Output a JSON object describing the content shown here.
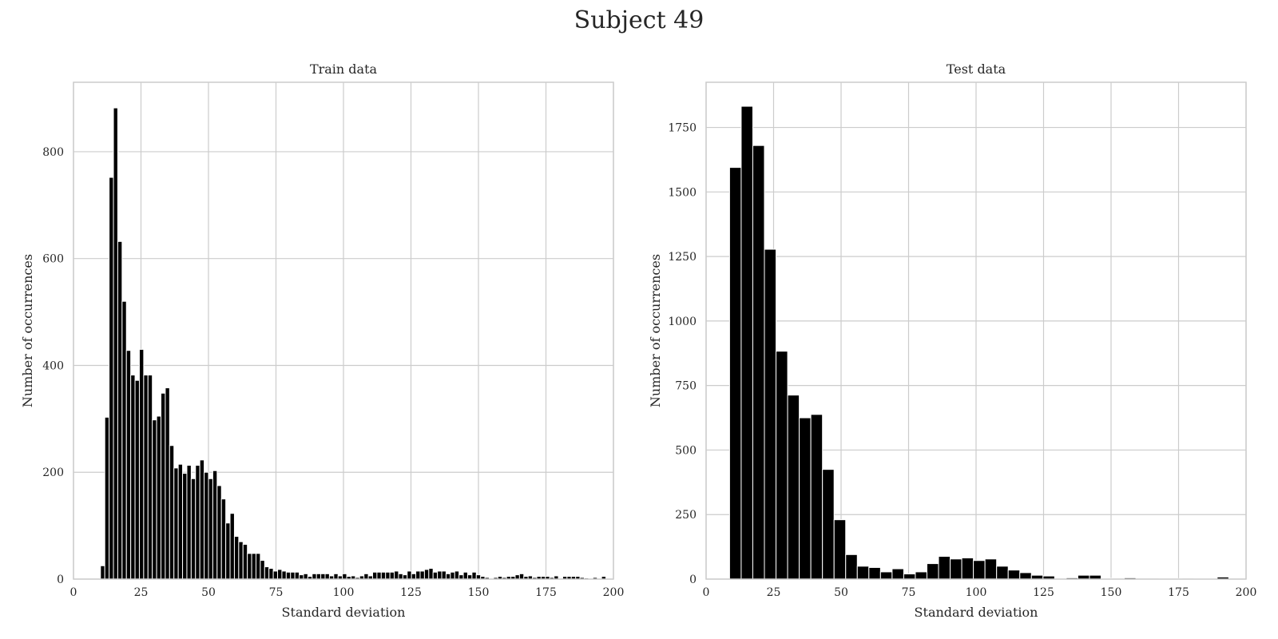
{
  "figure": {
    "title": "Subject 49"
  },
  "chart_data": [
    {
      "type": "bar",
      "title": "Train data",
      "xlabel": "Standard deviation",
      "ylabel": "Number of occurrences",
      "xlim": [
        0,
        200
      ],
      "ylim": [
        0,
        930
      ],
      "xticks": [
        0,
        25,
        50,
        75,
        100,
        125,
        150,
        175,
        200
      ],
      "yticks": [
        0,
        200,
        400,
        600,
        800
      ],
      "grid": true,
      "bin_width": 1.6,
      "bins": [
        [
          10.0,
          25
        ],
        [
          11.6,
          303
        ],
        [
          13.2,
          752
        ],
        [
          14.8,
          882
        ],
        [
          16.4,
          632
        ],
        [
          18.0,
          520
        ],
        [
          19.6,
          428
        ],
        [
          21.2,
          382
        ],
        [
          22.8,
          372
        ],
        [
          24.4,
          430
        ],
        [
          26.0,
          382
        ],
        [
          27.6,
          382
        ],
        [
          29.2,
          298
        ],
        [
          30.8,
          305
        ],
        [
          32.4,
          348
        ],
        [
          34.0,
          358
        ],
        [
          35.6,
          250
        ],
        [
          37.2,
          208
        ],
        [
          38.8,
          215
        ],
        [
          40.4,
          198
        ],
        [
          42.0,
          213
        ],
        [
          43.6,
          188
        ],
        [
          45.2,
          213
        ],
        [
          46.8,
          223
        ],
        [
          48.4,
          200
        ],
        [
          50.0,
          188
        ],
        [
          51.6,
          203
        ],
        [
          53.2,
          175
        ],
        [
          54.8,
          150
        ],
        [
          56.4,
          105
        ],
        [
          58.0,
          123
        ],
        [
          59.6,
          80
        ],
        [
          61.2,
          70
        ],
        [
          62.8,
          65
        ],
        [
          64.4,
          48
        ],
        [
          66.0,
          48
        ],
        [
          67.6,
          48
        ],
        [
          69.2,
          35
        ],
        [
          70.8,
          23
        ],
        [
          72.4,
          20
        ],
        [
          74.0,
          15
        ],
        [
          75.6,
          18
        ],
        [
          77.2,
          15
        ],
        [
          78.8,
          13
        ],
        [
          80.4,
          13
        ],
        [
          82.0,
          13
        ],
        [
          83.6,
          8
        ],
        [
          85.2,
          10
        ],
        [
          86.8,
          5
        ],
        [
          88.4,
          10
        ],
        [
          90.0,
          10
        ],
        [
          91.6,
          10
        ],
        [
          93.2,
          10
        ],
        [
          94.8,
          6
        ],
        [
          96.4,
          10
        ],
        [
          98.0,
          6
        ],
        [
          99.6,
          10
        ],
        [
          101.2,
          5
        ],
        [
          102.8,
          6
        ],
        [
          104.4,
          3
        ],
        [
          106.0,
          6
        ],
        [
          107.6,
          10
        ],
        [
          109.2,
          6
        ],
        [
          110.8,
          13
        ],
        [
          112.4,
          13
        ],
        [
          114.0,
          13
        ],
        [
          115.6,
          13
        ],
        [
          117.2,
          13
        ],
        [
          118.8,
          15
        ],
        [
          120.4,
          10
        ],
        [
          122.0,
          8
        ],
        [
          123.6,
          15
        ],
        [
          125.2,
          10
        ],
        [
          126.8,
          15
        ],
        [
          128.4,
          15
        ],
        [
          130.0,
          18
        ],
        [
          131.6,
          20
        ],
        [
          133.2,
          13
        ],
        [
          134.8,
          15
        ],
        [
          136.4,
          15
        ],
        [
          138.0,
          10
        ],
        [
          139.6,
          13
        ],
        [
          141.2,
          15
        ],
        [
          142.8,
          8
        ],
        [
          144.4,
          13
        ],
        [
          146.0,
          8
        ],
        [
          147.6,
          13
        ],
        [
          149.2,
          8
        ],
        [
          150.8,
          5
        ],
        [
          152.4,
          3
        ],
        [
          155.6,
          3
        ],
        [
          157.2,
          5
        ],
        [
          158.8,
          3
        ],
        [
          160.4,
          5
        ],
        [
          162.0,
          5
        ],
        [
          163.6,
          8
        ],
        [
          165.2,
          10
        ],
        [
          166.8,
          5
        ],
        [
          168.4,
          6
        ],
        [
          170.0,
          3
        ],
        [
          171.6,
          5
        ],
        [
          173.2,
          5
        ],
        [
          174.8,
          5
        ],
        [
          176.4,
          3
        ],
        [
          178.0,
          6
        ],
        [
          181.2,
          5
        ],
        [
          182.8,
          5
        ],
        [
          184.4,
          5
        ],
        [
          186.0,
          5
        ],
        [
          187.6,
          3
        ],
        [
          189.2,
          2
        ],
        [
          192.4,
          3
        ],
        [
          195.6,
          5
        ]
      ]
    },
    {
      "type": "bar",
      "title": "Test data",
      "xlabel": "Standard deviation",
      "ylabel": "Number of occurrences",
      "xlim": [
        0,
        200
      ],
      "ylim": [
        0,
        1925
      ],
      "xticks": [
        0,
        25,
        50,
        75,
        100,
        125,
        150,
        175,
        200
      ],
      "yticks": [
        0,
        250,
        500,
        750,
        1000,
        1250,
        1500,
        1750
      ],
      "grid": true,
      "bin_width": 4.3,
      "bins": [
        [
          8.7,
          1595
        ],
        [
          13.0,
          1832
        ],
        [
          17.3,
          1680
        ],
        [
          21.6,
          1278
        ],
        [
          25.9,
          883
        ],
        [
          30.2,
          713
        ],
        [
          34.5,
          625
        ],
        [
          38.8,
          638
        ],
        [
          43.1,
          425
        ],
        [
          47.4,
          230
        ],
        [
          51.7,
          95
        ],
        [
          56.0,
          50
        ],
        [
          60.3,
          45
        ],
        [
          64.6,
          28
        ],
        [
          68.9,
          40
        ],
        [
          73.2,
          20
        ],
        [
          77.5,
          28
        ],
        [
          81.8,
          60
        ],
        [
          86.1,
          88
        ],
        [
          90.4,
          78
        ],
        [
          94.7,
          82
        ],
        [
          99.0,
          72
        ],
        [
          103.3,
          78
        ],
        [
          107.6,
          50
        ],
        [
          111.9,
          35
        ],
        [
          116.2,
          25
        ],
        [
          120.5,
          15
        ],
        [
          124.8,
          12
        ],
        [
          133.4,
          5
        ],
        [
          137.7,
          15
        ],
        [
          142.0,
          15
        ],
        [
          146.3,
          3
        ],
        [
          154.9,
          5
        ],
        [
          167.8,
          2
        ],
        [
          172.1,
          2
        ],
        [
          180.7,
          2
        ],
        [
          185.0,
          2
        ],
        [
          189.3,
          8
        ]
      ]
    }
  ]
}
